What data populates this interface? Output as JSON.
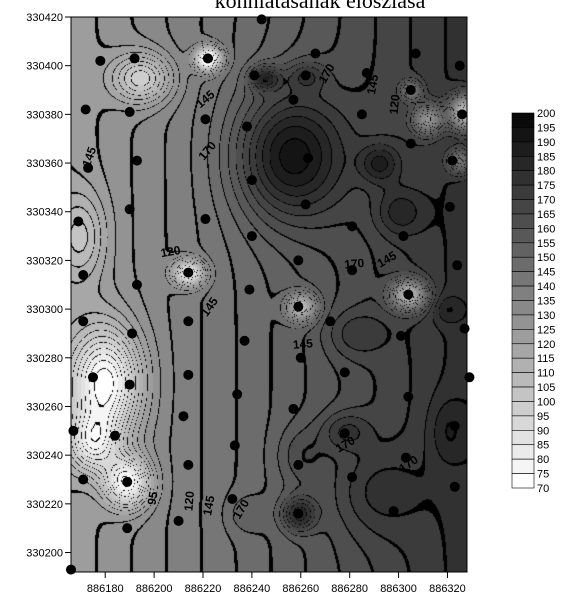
{
  "chart_data": {
    "type": "contour",
    "title": "kohniatasának eloszlása",
    "xlabel": "",
    "ylabel": "",
    "xlim": [
      886166,
      886328
    ],
    "ylim": [
      330192,
      330420
    ],
    "x_ticks": [
      886180,
      886200,
      886220,
      886240,
      886260,
      886280,
      886300,
      886320
    ],
    "y_ticks": [
      330200,
      330220,
      330240,
      330260,
      330280,
      330300,
      330320,
      330340,
      330360,
      330380,
      330400,
      330420
    ],
    "contour_labels": [
      {
        "text": "145",
        "x": 886222,
        "y": 330385,
        "rot": -40
      },
      {
        "text": "145",
        "x": 886175,
        "y": 330362,
        "rot": -70
      },
      {
        "text": "170",
        "x": 886223,
        "y": 330364,
        "rot": -50
      },
      {
        "text": "170",
        "x": 886272,
        "y": 330396,
        "rot": -60
      },
      {
        "text": "145",
        "x": 886291,
        "y": 330392,
        "rot": -80
      },
      {
        "text": "120",
        "x": 886300,
        "y": 330384,
        "rot": -85
      },
      {
        "text": "120",
        "x": 886207,
        "y": 330322,
        "rot": -10
      },
      {
        "text": "145",
        "x": 886224,
        "y": 330300,
        "rot": -55
      },
      {
        "text": "170",
        "x": 886282,
        "y": 330317,
        "rot": -5
      },
      {
        "text": "145",
        "x": 886296,
        "y": 330319,
        "rot": -30
      },
      {
        "text": "145",
        "x": 886261,
        "y": 330284,
        "rot": -5
      },
      {
        "text": "170",
        "x": 886279,
        "y": 330243,
        "rot": -30
      },
      {
        "text": "170",
        "x": 886305,
        "y": 330235,
        "rot": -35
      },
      {
        "text": "95",
        "x": 886201,
        "y": 330222,
        "rot": -80
      },
      {
        "text": "120",
        "x": 886216,
        "y": 330221,
        "rot": -85
      },
      {
        "text": "145",
        "x": 886224,
        "y": 330219,
        "rot": -80
      },
      {
        "text": "170",
        "x": 886237,
        "y": 330217,
        "rot": -60
      }
    ],
    "legend_levels": [
      200,
      195,
      190,
      185,
      180,
      175,
      170,
      165,
      160,
      155,
      150,
      145,
      140,
      135,
      130,
      125,
      120,
      115,
      110,
      105,
      100,
      95,
      90,
      85,
      80,
      75,
      70
    ],
    "legend_position": "right",
    "sample_points": [
      [
        886178,
        330402
      ],
      [
        886192,
        330403
      ],
      [
        886222,
        330403
      ],
      [
        886266,
        330405
      ],
      [
        886307,
        330405
      ],
      [
        886325,
        330400
      ],
      [
        886241,
        330396
      ],
      [
        886262,
        330396
      ],
      [
        886287,
        330397
      ],
      [
        886172,
        330382
      ],
      [
        886190,
        330381
      ],
      [
        886221,
        330378
      ],
      [
        886238,
        330375
      ],
      [
        886257,
        330386
      ],
      [
        886285,
        330380
      ],
      [
        886305,
        330390
      ],
      [
        886326,
        330380
      ],
      [
        886193,
        330361
      ],
      [
        886173,
        330358
      ],
      [
        886240,
        330353
      ],
      [
        886263,
        330362
      ],
      [
        886305,
        330368
      ],
      [
        886322,
        330361
      ],
      [
        886190,
        330341
      ],
      [
        886221,
        330337
      ],
      [
        886262,
        330343
      ],
      [
        886281,
        330334
      ],
      [
        886321,
        330342
      ],
      [
        886169,
        330336
      ],
      [
        886240,
        330330
      ],
      [
        886302,
        330330
      ],
      [
        886171,
        330314
      ],
      [
        886193,
        330310
      ],
      [
        886214,
        330315
      ],
      [
        886259,
        330320
      ],
      [
        886281,
        330316
      ],
      [
        886324,
        330318
      ],
      [
        886171,
        330295
      ],
      [
        886191,
        330290
      ],
      [
        886214,
        330295
      ],
      [
        886239,
        330308
      ],
      [
        886259,
        330301
      ],
      [
        886304,
        330306
      ],
      [
        886327,
        330292
      ],
      [
        886237,
        330287
      ],
      [
        886272,
        330295
      ],
      [
        886301,
        330289
      ],
      [
        886175,
        330272
      ],
      [
        886190,
        330269
      ],
      [
        886214,
        330273
      ],
      [
        886260,
        330280
      ],
      [
        886278,
        330274
      ],
      [
        886167,
        330250
      ],
      [
        886184,
        330248
      ],
      [
        886212,
        330256
      ],
      [
        886234,
        330265
      ],
      [
        886257,
        330259
      ],
      [
        886278,
        330249
      ],
      [
        886304,
        330264
      ],
      [
        886323,
        330252
      ],
      [
        886171,
        330230
      ],
      [
        886189,
        330229
      ],
      [
        886214,
        330236
      ],
      [
        886233,
        330244
      ],
      [
        886259,
        330236
      ],
      [
        886281,
        330231
      ],
      [
        886303,
        330239
      ],
      [
        886323,
        330227
      ],
      [
        886189,
        330210
      ],
      [
        886210,
        330213
      ],
      [
        886232,
        330222
      ],
      [
        886259,
        330216
      ],
      [
        886298,
        330217
      ],
      [
        886166,
        330193
      ],
      [
        886329,
        330272
      ],
      [
        886244,
        330419
      ]
    ],
    "color_map": [
      "#ffffff",
      "#000000"
    ]
  }
}
